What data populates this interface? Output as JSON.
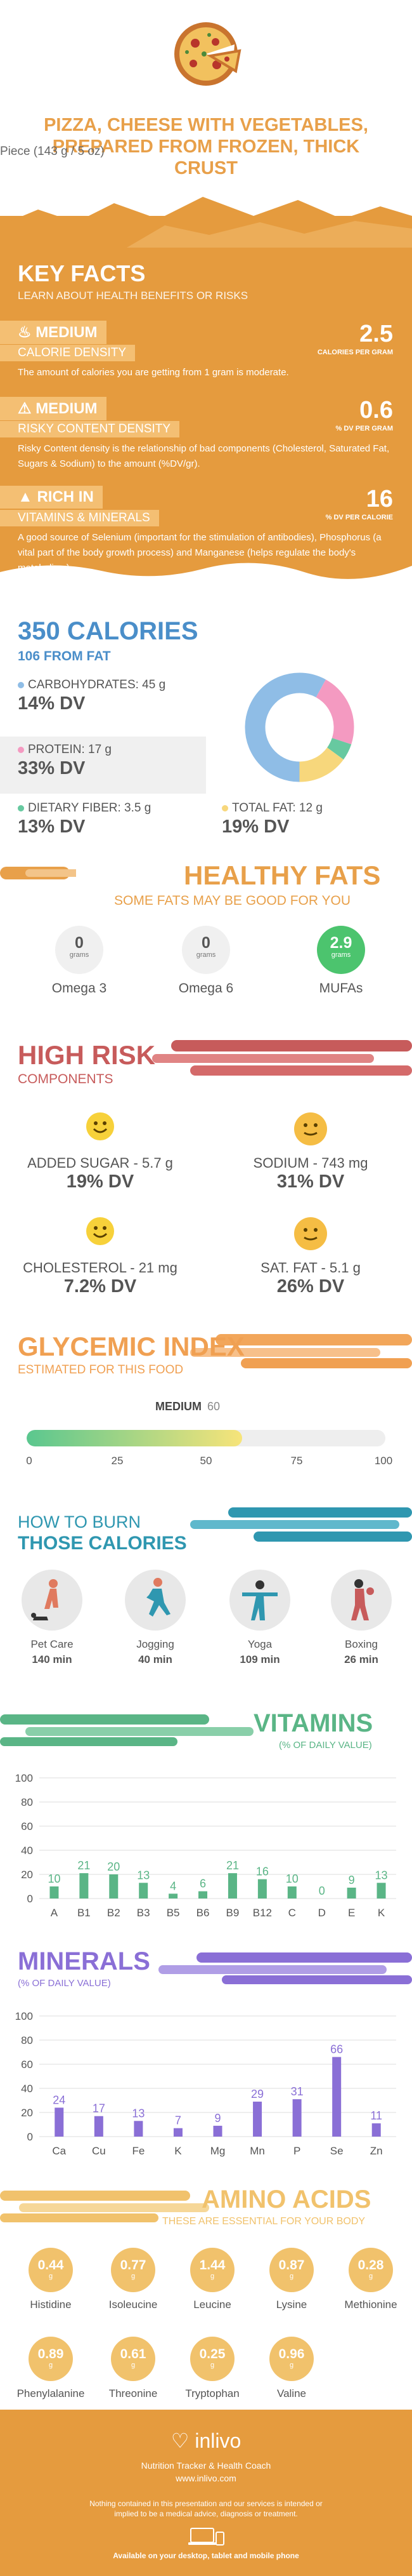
{
  "header": {
    "title": "PIZZA, CHEESE WITH VEGETABLES, PREPARED FROM FROZEN, THICK CRUST",
    "serving": "Piece (143 g / 5 oz)"
  },
  "key_facts": {
    "title": "KEY FACTS",
    "subtitle": "LEARN ABOUT HEALTH BENEFITS OR RISKS",
    "facts": [
      {
        "level": "MEDIUM",
        "name": "CALORIE DENSITY",
        "value": "2.5",
        "unit": "CALORIES PER GRAM",
        "desc": "The amount of calories you are getting from 1 gram is moderate."
      },
      {
        "level": "MEDIUM",
        "name": "RISKY CONTENT DENSITY",
        "value": "0.6",
        "unit": "% DV PER GRAM",
        "desc": "Risky Content density is the relationship of bad components (Cholesterol, Saturated Fat, Sugars & Sodium) to the amount (%DV/gr)."
      },
      {
        "level": "RICH  IN",
        "name": "VITAMINS & MINERALS",
        "value": "16",
        "unit": "% DV PER CALORIE",
        "desc": "A good source of Selenium (important for the stimulation of antibodies), Phosphorus (a vital part of the body growth process) and Manganese (helps regulate the body's metabolism)."
      }
    ]
  },
  "calories": {
    "title": "350 CALORIES",
    "subtitle": "106 FROM FAT",
    "macros": [
      {
        "label": "CARBOHYDRATES: 45 g",
        "dv": "14% DV",
        "color": "#8fbde6"
      },
      {
        "label": "PROTEIN: 17 g",
        "dv": "33% DV",
        "color": "#f49ac1"
      },
      {
        "label": "DIETARY FIBER: 3.5 g",
        "dv": "13% DV",
        "color": "#67c9a0"
      },
      {
        "label": "TOTAL FAT: 12 g",
        "dv": "19% DV",
        "color": "#f7d77c"
      }
    ],
    "donut": [
      {
        "name": "carbohydrates",
        "fraction": 0.58,
        "color": "#8fbde6"
      },
      {
        "name": "protein",
        "fraction": 0.22,
        "color": "#f49ac1"
      },
      {
        "name": "fiber",
        "fraction": 0.05,
        "color": "#67c9a0"
      },
      {
        "name": "fat",
        "fraction": 0.15,
        "color": "#f7d77c"
      }
    ]
  },
  "fats": {
    "title": "HEALTHY FATS",
    "subtitle": "SOME FATS MAY BE GOOD FOR YOU",
    "items": [
      {
        "value": "0",
        "unit": "grams",
        "label": "Omega 3"
      },
      {
        "value": "0",
        "unit": "grams",
        "label": "Omega 6"
      },
      {
        "value": "2.9",
        "unit": "grams",
        "label": "MUFAs"
      }
    ]
  },
  "risk": {
    "title": "HIGH RISK",
    "subtitle": "COMPONENTS",
    "items": [
      {
        "label": "ADDED SUGAR - 5.7 g",
        "dv": "19% DV"
      },
      {
        "label": "SODIUM - 743 mg",
        "dv": "31% DV"
      },
      {
        "label": "CHOLESTEROL - 21 mg",
        "dv": "7.2% DV"
      },
      {
        "label": "SAT. FAT - 5.1 g",
        "dv": "26% DV"
      }
    ]
  },
  "glycemic": {
    "title": "GLYCEMIC INDEX",
    "subtitle": "ESTIMATED FOR THIS FOOD",
    "level": "MEDIUM",
    "value": "60",
    "fraction": 0.6,
    "ticks": [
      "0",
      "25",
      "50",
      "75",
      "100"
    ]
  },
  "burn": {
    "title1": "HOW TO BURN",
    "title2": "THOSE CALORIES",
    "activities": [
      {
        "name": "Pet Care",
        "minutes": "140 min"
      },
      {
        "name": "Jogging",
        "minutes": "40 min"
      },
      {
        "name": "Yoga",
        "minutes": "109 min"
      },
      {
        "name": "Boxing",
        "minutes": "26 min"
      }
    ]
  },
  "vitamins": {
    "title": "VITAMINS",
    "subtitle": "(% OF DAILY VALUE)"
  },
  "minerals": {
    "title": "MINERALS",
    "subtitle": "(% OF DAILY VALUE)"
  },
  "chart_data": [
    {
      "type": "bar",
      "title": "VITAMINS",
      "categories": [
        "A",
        "B1",
        "B2",
        "B3",
        "B5",
        "B6",
        "B9",
        "B12",
        "C",
        "D",
        "E",
        "K"
      ],
      "values": [
        10,
        21,
        20,
        13,
        4,
        6,
        21,
        16,
        10,
        0,
        9,
        13
      ],
      "ylim": [
        0,
        100
      ],
      "yticks": [
        "0",
        "20",
        "40",
        "60",
        "80",
        "100"
      ],
      "color": "#5ab586",
      "grid": true
    },
    {
      "type": "bar",
      "title": "MINERALS",
      "categories": [
        "Ca",
        "Cu",
        "Fe",
        "K",
        "Mg",
        "Mn",
        "P",
        "Se",
        "Zn"
      ],
      "values": [
        24,
        17,
        13,
        7,
        9,
        29,
        31,
        66,
        11
      ],
      "ylim": [
        0,
        100
      ],
      "yticks": [
        "0",
        "20",
        "40",
        "60",
        "80",
        "100"
      ],
      "color": "#8a6fd6",
      "grid": true
    }
  ],
  "amino": {
    "title": "AMINO ACIDS",
    "subtitle": "THESE ARE ESSENTIAL FOR YOUR BODY",
    "unit": "g",
    "items": [
      {
        "value": "0.44",
        "label": "Histidine"
      },
      {
        "value": "0.77",
        "label": "Isoleucine"
      },
      {
        "value": "1.44",
        "label": "Leucine"
      },
      {
        "value": "0.87",
        "label": "Lysine"
      },
      {
        "value": "0.28",
        "label": "Methionine"
      },
      {
        "value": "0.89",
        "label": "Phenylalanine"
      },
      {
        "value": "0.61",
        "label": "Threonine"
      },
      {
        "value": "0.25",
        "label": "Tryptophan"
      },
      {
        "value": "0.96",
        "label": "Valine"
      }
    ]
  },
  "footer": {
    "logo": "inlivo",
    "tagline": "Nutrition Tracker & Health Coach",
    "site": "www.inlivo.com",
    "disclaimer": "Nothing contained in this presentation and our services is intended or implied to be a medical advice, diagnosis or treatment.",
    "available": "Available on your desktop, tablet and mobile phone"
  }
}
